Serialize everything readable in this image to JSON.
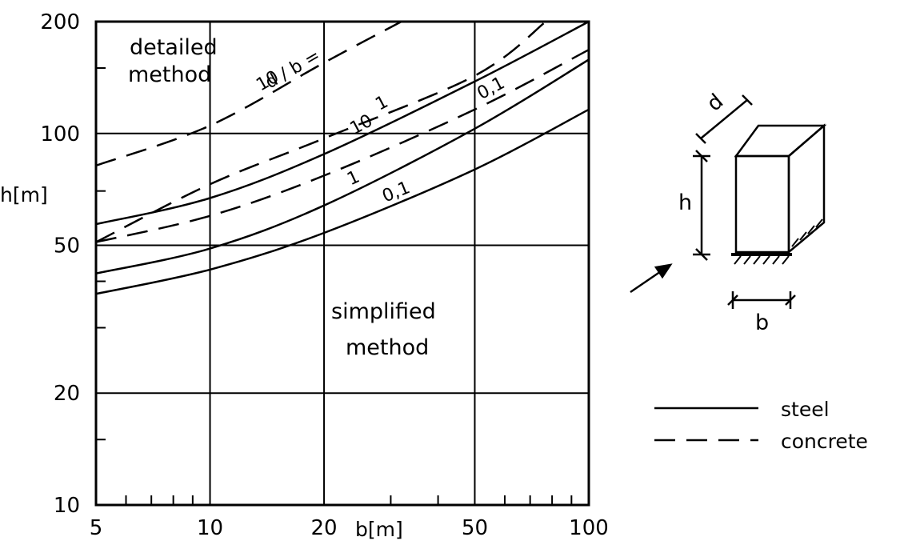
{
  "chart_data": {
    "type": "line",
    "x_scale": "log",
    "y_scale": "log",
    "xlim": [
      5,
      100
    ],
    "ylim": [
      10,
      200
    ],
    "xlabel": "b[m]",
    "ylabel": "h[m]",
    "xticks": [
      5,
      10,
      20,
      50,
      100
    ],
    "yticks": [
      10,
      20,
      50,
      100,
      200
    ],
    "x_tick_labels": [
      "5",
      "10",
      "20",
      "50",
      "100"
    ],
    "y_tick_labels": [
      "10",
      "20",
      "50",
      "100",
      "200"
    ],
    "grid": true,
    "legend_position": "right",
    "series": [
      {
        "kind": "steel",
        "label": "10",
        "style": "solid",
        "x": [
          5,
          10,
          20,
          50,
          100
        ],
        "y": [
          57,
          67,
          88,
          138,
          200
        ]
      },
      {
        "kind": "steel",
        "label": "1",
        "style": "solid",
        "x": [
          5,
          10,
          20,
          50,
          100
        ],
        "y": [
          42,
          49,
          64,
          103,
          158
        ]
      },
      {
        "kind": "steel",
        "label": "0,1",
        "style": "solid",
        "x": [
          5,
          10,
          20,
          50,
          100
        ],
        "y": [
          37,
          43,
          54,
          80,
          116
        ]
      },
      {
        "kind": "concrete",
        "label": "10",
        "style": "dashed",
        "x": [
          5,
          10,
          20,
          32
        ],
        "y": [
          82,
          105,
          155,
          200
        ]
      },
      {
        "kind": "concrete",
        "label": "1",
        "style": "dashed",
        "x": [
          5,
          10,
          20,
          50,
          77
        ],
        "y": [
          51,
          73,
          97,
          143,
          200
        ]
      },
      {
        "kind": "concrete",
        "label": "0,1",
        "style": "dashed",
        "x": [
          5,
          10,
          20,
          50,
          100
        ],
        "y": [
          51,
          60,
          77,
          116,
          168
        ]
      }
    ],
    "region_labels": {
      "detailed": [
        "detailed",
        "method"
      ],
      "simplified": [
        "simplified",
        "method"
      ]
    },
    "param_label": "d / b ="
  },
  "legend": {
    "steel": "steel",
    "concrete": "concrete"
  },
  "diagram": {
    "d_label": "d",
    "h_label": "h",
    "b_label": "b"
  }
}
